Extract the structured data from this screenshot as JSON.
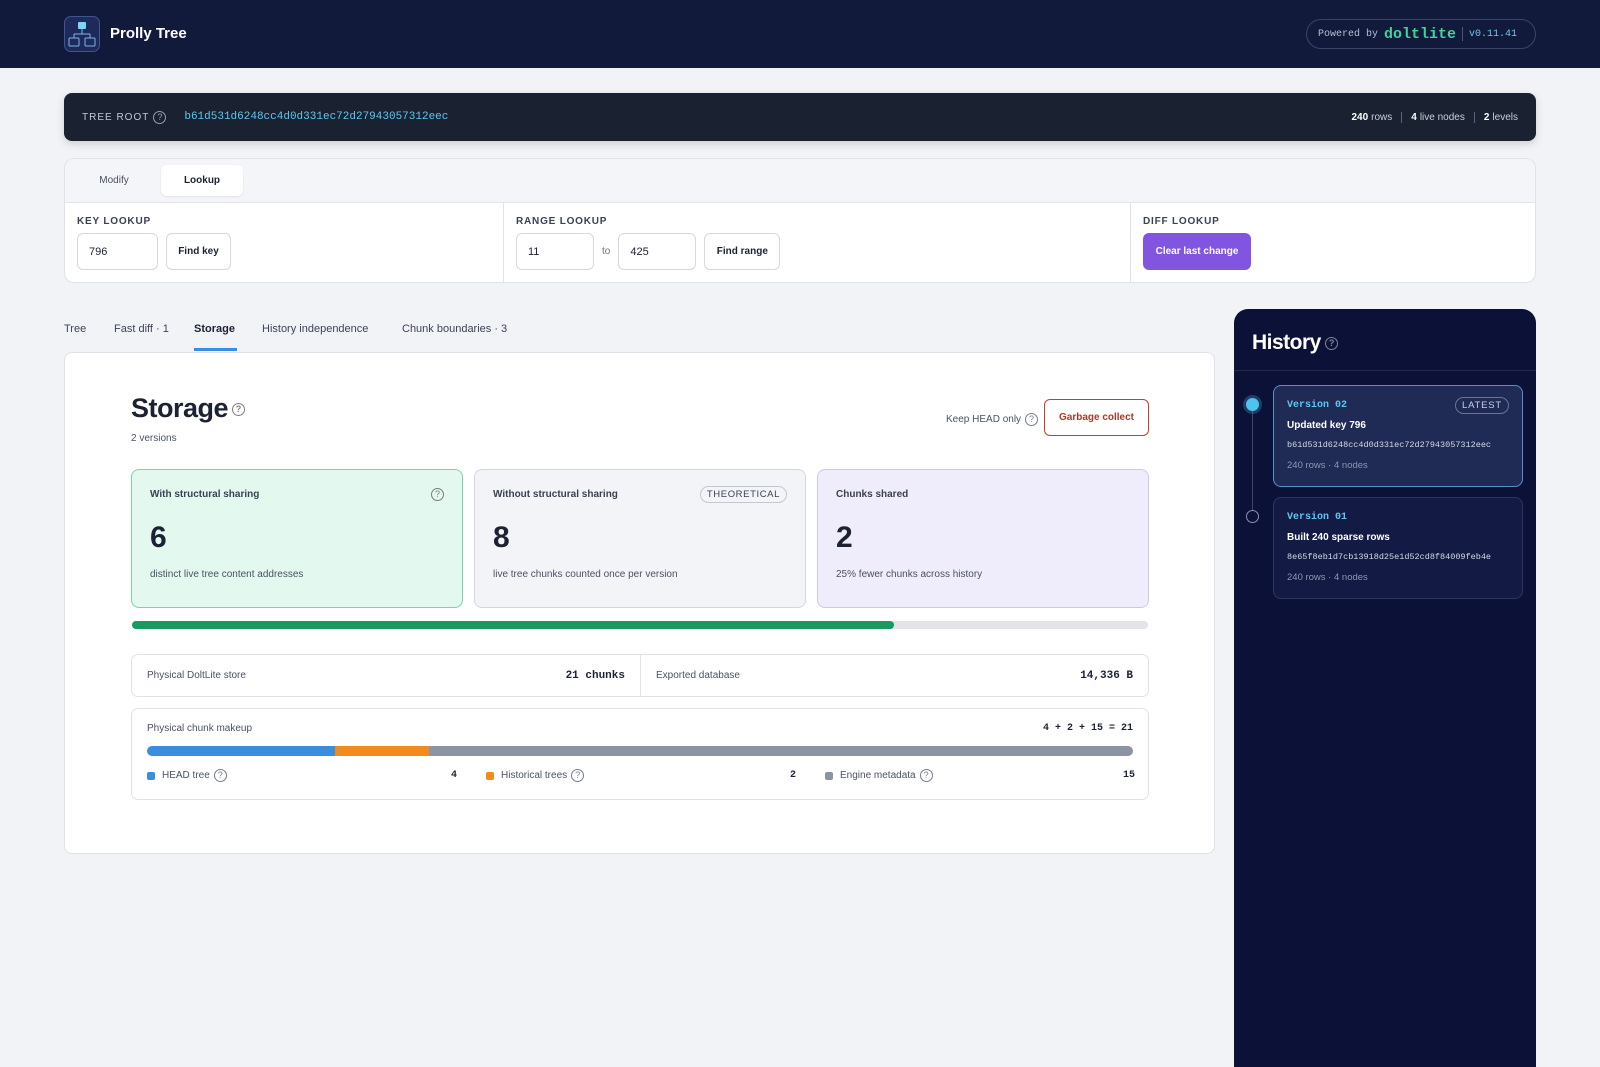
{
  "header": {
    "title": "Prolly Tree",
    "powered_by": "Powered by",
    "brand": "doltlite",
    "version": "v0.11.41"
  },
  "help_icon": "?",
  "tree_root": {
    "label": "TREE ROOT",
    "hash": "b61d531d6248cc4d0d331ec72d27943057312eec",
    "stats": [
      {
        "value": "240",
        "label": "rows"
      },
      {
        "value": "4",
        "label": "live nodes"
      },
      {
        "value": "2",
        "label": "levels"
      }
    ]
  },
  "controls": {
    "tabs": [
      "Modify",
      "Lookup"
    ],
    "active_tab": 1,
    "key_lookup": {
      "label": "KEY LOOKUP",
      "input": "796",
      "button": "Find key"
    },
    "range_lookup": {
      "label": "RANGE LOOKUP",
      "from": "11",
      "to_word": "to",
      "to": "425",
      "button": "Find range"
    },
    "diff_lookup": {
      "label": "DIFF LOOKUP",
      "button": "Clear last change"
    }
  },
  "main_tabs": [
    "Tree",
    "Fast diff · 1",
    "Storage",
    "History independence",
    "Chunk boundaries · 3"
  ],
  "active_main_tab": 2,
  "storage": {
    "title": "Storage",
    "subtitle": "2 versions",
    "keep_head": "Keep HEAD only",
    "gc_button": "Garbage collect",
    "cards": [
      {
        "title": "With structural sharing",
        "value": 6,
        "caption": "distinct live tree content addresses"
      },
      {
        "title": "Without structural sharing",
        "badge": "THEORETICAL",
        "value": 8,
        "caption": "live tree chunks counted once per version"
      },
      {
        "title": "Chunks shared",
        "value": 2,
        "caption": "25% fewer chunks across history"
      }
    ],
    "totals": [
      {
        "label": "Physical DoltLite store",
        "value": "21 chunks"
      },
      {
        "label": "Exported database",
        "value": "14,336 B"
      }
    ],
    "makeup": {
      "label": "Physical chunk makeup",
      "equation": "4 + 2 + 15 = 21",
      "segments": [
        {
          "name": "HEAD tree",
          "value": 4,
          "color": "#3b8de0"
        },
        {
          "name": "Historical trees",
          "value": 2,
          "color": "#f28a1d"
        },
        {
          "name": "Engine metadata",
          "value": 15,
          "color": "#8b93a5"
        }
      ]
    }
  },
  "history": {
    "title": "History",
    "versions": [
      {
        "label": "Version 02",
        "badge": "LATEST",
        "title": "Updated key 796",
        "hash": "b61d531d6248cc4d0d331ec72d27943057312eec",
        "meta": "240 rows · 4 nodes"
      },
      {
        "label": "Version 01",
        "title": "Built 240 sparse rows",
        "hash": "8e65f8eb1d7cb13918d25e1d52cd8f84009feb4e",
        "meta": "240 rows · 4 nodes"
      }
    ]
  }
}
